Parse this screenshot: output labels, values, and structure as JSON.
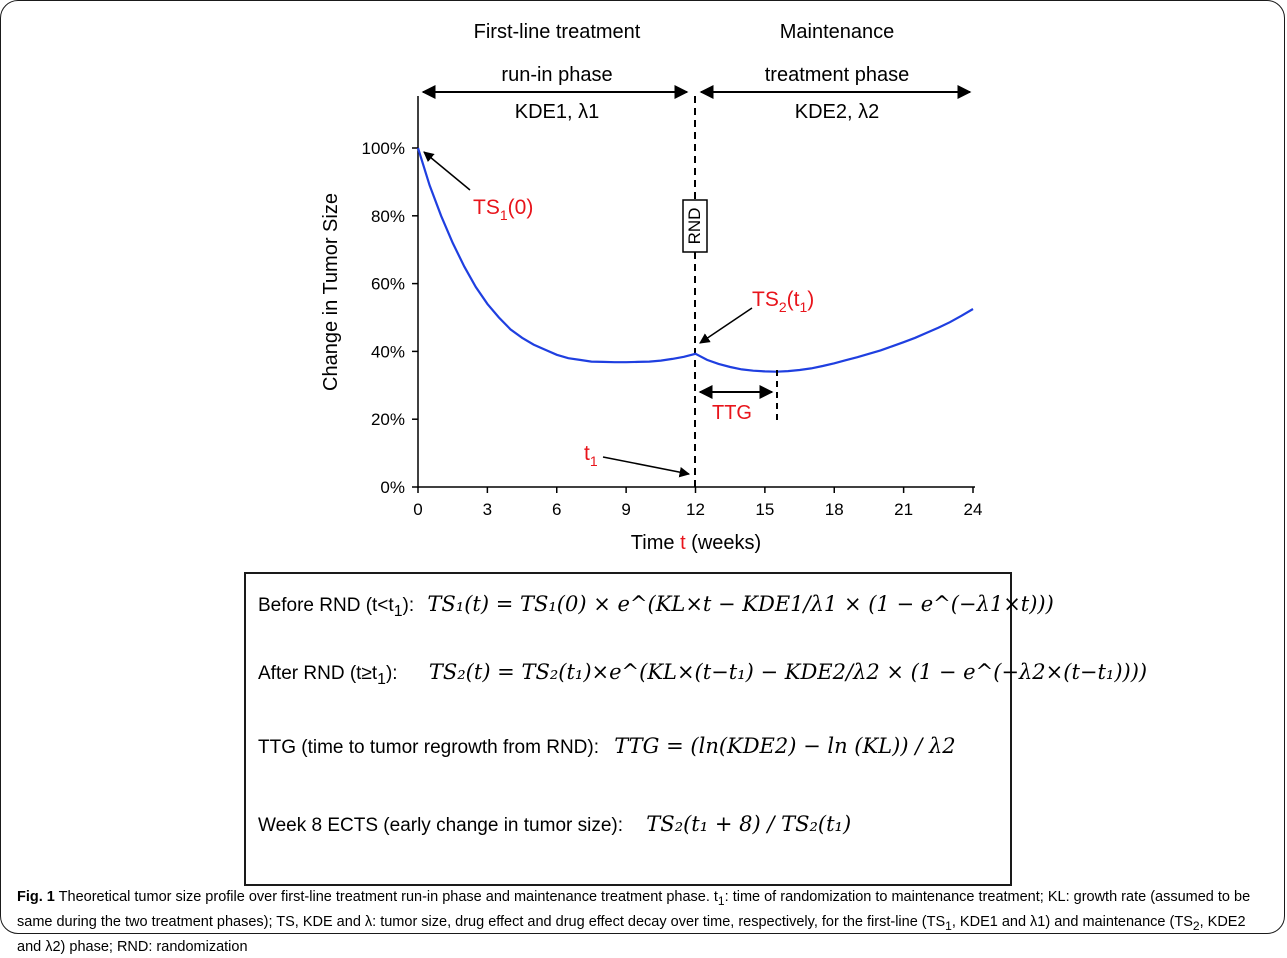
{
  "chart_data": {
    "type": "line",
    "title": "",
    "xlabel_before": "Time ",
    "xlabel_var": "t",
    "xlabel_after": " (weeks)",
    "ylabel": "Change in Tumor Size",
    "x_ticks": [
      "0",
      "3",
      "6",
      "9",
      "12",
      "15",
      "18",
      "21",
      "24"
    ],
    "y_ticks": [
      "0%",
      "20%",
      "40%",
      "60%",
      "80%",
      "100%"
    ],
    "xlim": [
      0,
      24
    ],
    "ylim": [
      0,
      100
    ],
    "series": [
      {
        "color": "#1f3fe0",
        "x": [
          0,
          0.5,
          1,
          1.5,
          2,
          2.5,
          3,
          3.5,
          4,
          4.5,
          5,
          5.5,
          6,
          6.5,
          7,
          7.5,
          8,
          8.5,
          9,
          9.5,
          10,
          10.5,
          11,
          11.5,
          12,
          12.5,
          13,
          13.5,
          14,
          14.5,
          15,
          15.5,
          16,
          16.5,
          17,
          17.5,
          18,
          18.5,
          19,
          19.5,
          20,
          20.5,
          21,
          21.5,
          22,
          22.5,
          23,
          23.5,
          24
        ],
        "y": [
          100,
          89,
          80,
          72,
          65,
          59,
          54,
          50,
          46.5,
          44,
          42,
          40.5,
          39,
          38,
          37.5,
          37,
          36.9,
          36.8,
          36.8,
          36.9,
          37,
          37.3,
          37.8,
          38.4,
          39.3,
          37.5,
          36.3,
          35.4,
          34.7,
          34.3,
          34.1,
          34,
          34.2,
          34.5,
          35,
          35.7,
          36.5,
          37.4,
          38.3,
          39.3,
          40.3,
          41.5,
          42.7,
          44,
          45.5,
          47,
          48.6,
          50.5,
          52.5
        ]
      }
    ],
    "annotations": {
      "phase1_line1": "First-line treatment",
      "phase1_line2": "run-in phase",
      "phase1_line3": "KDE1, λ1",
      "phase2_line1": "Maintenance",
      "phase2_line2": "treatment phase",
      "phase2_line3": "KDE2, λ2",
      "rnd_box": "RND",
      "ts1_main": "TS",
      "ts1_sub": "1",
      "ts1_arg": "(0)",
      "ts2_main": "TS",
      "ts2_sub": "2",
      "ts2_arg_open": "(t",
      "ts2_arg_sub": "1",
      "ts2_arg_close": ")",
      "ttg_label": "TTG",
      "t1_main": "t",
      "t1_sub": "1"
    }
  },
  "formulas": {
    "before_label": "Before RND (t<t",
    "before_label_sub": "1",
    "before_label_end": "):",
    "after_label": "After RND (t≥t",
    "after_label_sub": "1",
    "after_label_end": "):",
    "ttg_label": "TTG (time to tumor regrowth from RND):",
    "ects_label": "Week 8 ECTS (early change in tumor size):",
    "before_eq": "TS₁(t) = TS₁(0) × e^(KL×t − KDE1/λ1 × (1 − e^(−λ1×t)))",
    "after_eq": "TS₂(t) = TS₂(t₁)×e^(KL×(t−t₁) − KDE2/λ2 × (1 − e^(−λ2×(t−t₁))))",
    "ttg_eq": "TTG = (ln(KDE2) − ln (KL)) / λ2",
    "ects_eq": "TS₂(t₁ + 8) / TS₂(t₁)"
  },
  "caption": {
    "fig_label": "Fig. 1",
    "text_1": " Theoretical tumor size profile over first-line treatment run-in phase and maintenance treatment phase. t",
    "text_1_sub": "1",
    "text_2": ": time of randomization to maintenance treatment; KL: growth rate (assumed to be same during the two treatment phases); TS, KDE and λ: tumor size, drug effect and drug effect decay over time, respectively, for the first-line (TS",
    "text_2_sub": "1",
    "text_3": ", KDE1 and λ1) and maintenance (TS",
    "text_3_sub": "2",
    "text_4": ", KDE2 and λ2) phase; RND: randomization"
  }
}
